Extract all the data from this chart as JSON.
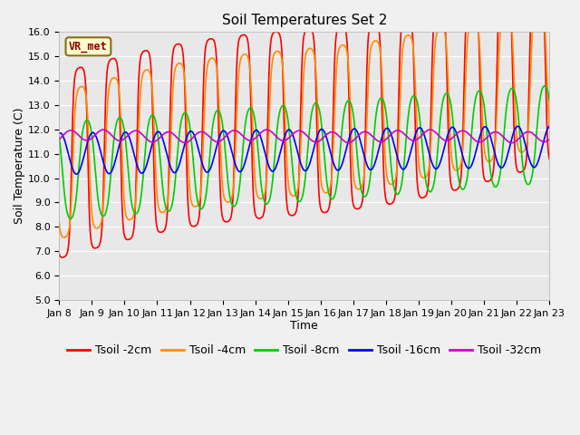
{
  "title": "Soil Temperatures Set 2",
  "xlabel": "Time",
  "ylabel": "Soil Temperature (C)",
  "ylim": [
    5.0,
    16.0
  ],
  "yticks": [
    5.0,
    6.0,
    7.0,
    8.0,
    9.0,
    10.0,
    11.0,
    12.0,
    13.0,
    14.0,
    15.0,
    16.0
  ],
  "xtick_labels": [
    "Jan 8",
    "Jan 9",
    "Jan 10",
    "Jan 11",
    "Jan 12",
    "Jan 13",
    "Jan 14",
    "Jan 15",
    "Jan 16",
    "Jan 17",
    "Jan 18",
    "Jan 19",
    "Jan 20",
    "Jan 21",
    "Jan 22",
    "Jan 23"
  ],
  "series_colors": {
    "Tsoil -2cm": "#ff0000",
    "Tsoil -4cm": "#ff8c00",
    "Tsoil -8cm": "#00cc00",
    "Tsoil -16cm": "#0000ff",
    "Tsoil -32cm": "#cc00cc"
  },
  "annotation": "VR_met",
  "title_fontsize": 11,
  "label_fontsize": 9,
  "tick_fontsize": 8,
  "legend_fontsize": 9
}
